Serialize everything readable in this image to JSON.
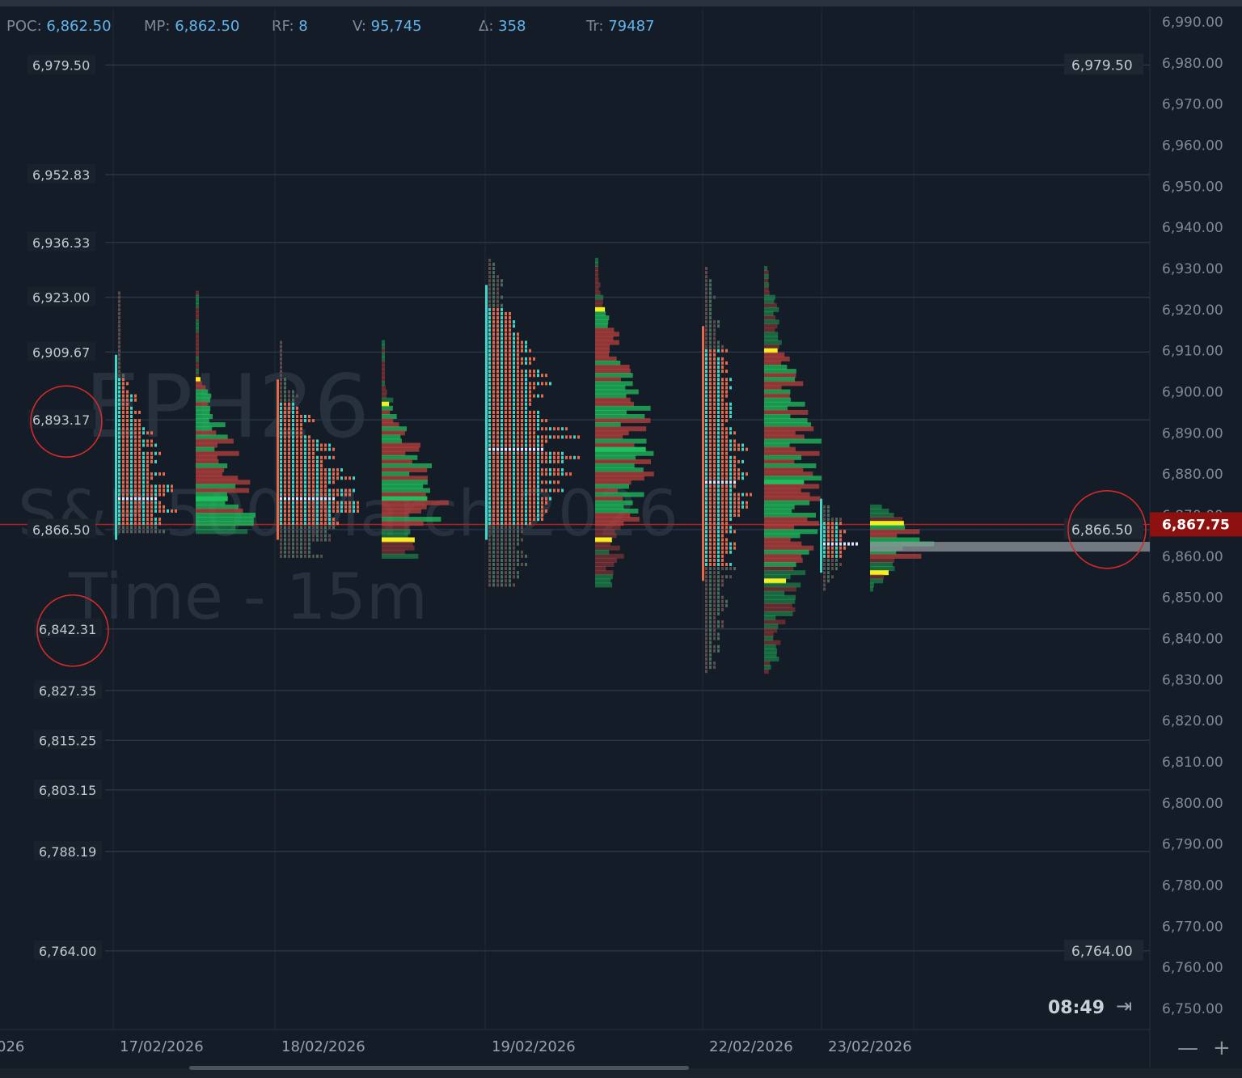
{
  "stats": {
    "poc_label": "POC:",
    "poc_value": "6,862.50",
    "mp_label": "MP:",
    "mp_value": "6,862.50",
    "rf_label": "RF:",
    "rf_value": "8",
    "v_label": "V:",
    "v_value": "95,745",
    "delta_label": "Δ:",
    "delta_value": "358",
    "tr_label": "Tr:",
    "tr_value": "79487"
  },
  "watermark": {
    "symbol": "EPH26",
    "name": "S&P 500 March 2026",
    "timeframe": "Time - 15m"
  },
  "clock": "08:49",
  "controls": {
    "zoom_out": "—",
    "zoom_in": "+",
    "jump_icon": "arrow-to-end-icon"
  },
  "colors": {
    "background": "#141c27",
    "bid": "#e8694a",
    "ask": "#3ed6c7",
    "poc": "#dfe6ff",
    "volume_green": "#1fbf5e",
    "volume_red": "#b8403e",
    "volume_yellow": "#f6ee1e",
    "last_price_bg": "#8e1111",
    "grid": "#1f2a36",
    "level_line": "#26384a"
  },
  "chart_data": {
    "type": "market-profile",
    "instrument": "EPH26",
    "y_axis": {
      "min": 6750,
      "max": 6990,
      "step": 10,
      "tick_labels": [
        "6,990.00",
        "6,980.00",
        "6,970.00",
        "6,960.00",
        "6,950.00",
        "6,940.00",
        "6,930.00",
        "6,920.00",
        "6,910.00",
        "6,900.00",
        "6,890.00",
        "6,880.00",
        "6,870.00",
        "6,860.00",
        "6,850.00",
        "6,840.00",
        "6,830.00",
        "6,820.00",
        "6,810.00",
        "6,800.00",
        "6,790.00",
        "6,780.00",
        "6,770.00",
        "6,760.00",
        "6,750.00"
      ]
    },
    "x_axis": {
      "labels": [
        {
          "text": "026",
          "slot": 0.0
        },
        {
          "text": "17/02/2026",
          "slot": 1.0
        },
        {
          "text": "18/02/2026",
          "slot": 2.0
        },
        {
          "text": "19/02/2026",
          "slot": 3.0
        },
        {
          "text": "22/02/2026",
          "slot": 4.0
        },
        {
          "text": "23/02/2026",
          "slot": 5.0
        }
      ]
    },
    "last_price": "6,867.75",
    "last_price_value": 6867.75,
    "levels": [
      {
        "label": "6,979.50",
        "value": 6979.5
      },
      {
        "label": "6,952.83",
        "value": 6952.83
      },
      {
        "label": "6,936.33",
        "value": 6936.33
      },
      {
        "label": "6,923.00",
        "value": 6923.0
      },
      {
        "label": "6,909.67",
        "value": 6909.67
      },
      {
        "label": "6,893.17",
        "value": 6893.17,
        "circled": true
      },
      {
        "label": "6,866.50",
        "value": 6866.5
      },
      {
        "label": "6,842.31",
        "value": 6842.31,
        "circled": true
      },
      {
        "label": "6,827.35",
        "value": 6827.35
      },
      {
        "label": "6,815.25",
        "value": 6815.25
      },
      {
        "label": "6,803.15",
        "value": 6803.15
      },
      {
        "label": "6,788.19",
        "value": 6788.19
      },
      {
        "label": "6,764.00",
        "value": 6764.0
      }
    ],
    "right_labels": [
      {
        "label": "6,979.50",
        "value": 6979.5
      },
      {
        "label": "6,866.50",
        "value": 6866.5,
        "circled": true
      },
      {
        "label": "6,764.00",
        "value": 6764.0
      }
    ],
    "profiles": [
      {
        "day": "17/02/2026",
        "high": 6924,
        "low": 6866,
        "poc": 6874,
        "va_high": 6903,
        "va_low": 6868
      },
      {
        "day": "18/02/2026",
        "high": 6912,
        "low": 6860,
        "poc": 6874,
        "va_high": 6897,
        "va_low": 6868
      },
      {
        "day": "19/02/2026",
        "high": 6932,
        "low": 6853,
        "poc": 6886,
        "va_high": 6920,
        "va_low": 6868
      },
      {
        "day": "22/02/2026",
        "high": 6930,
        "low": 6832,
        "poc": 6878,
        "va_high": 6910,
        "va_low": 6858
      },
      {
        "day": "23/02/2026",
        "high": 6872,
        "low": 6852,
        "poc": 6863,
        "va_high": 6868,
        "va_low": 6860
      }
    ]
  }
}
